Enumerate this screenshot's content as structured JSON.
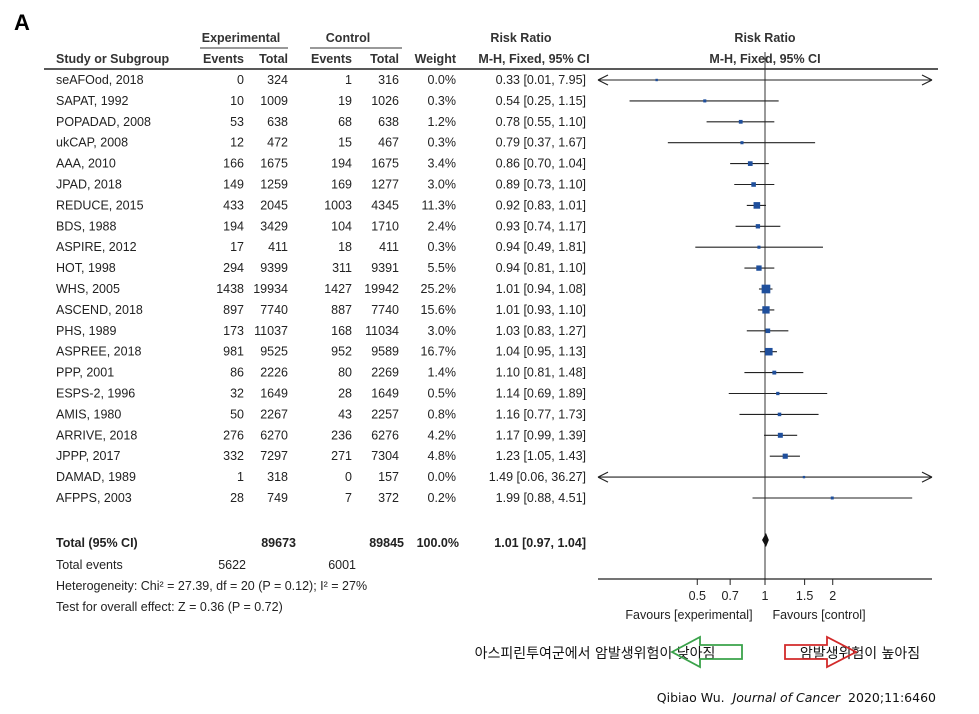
{
  "panel_label": "A",
  "headers": {
    "group_experimental": "Experimental",
    "group_control": "Control",
    "group_risk_ratio_left": "Risk Ratio",
    "method_left": "M-H, Fixed, 95% CI",
    "group_risk_ratio_right": "Risk Ratio",
    "method_right": "M-H, Fixed, 95% CI",
    "study": "Study or Subgroup",
    "events": "Events",
    "total": "Total",
    "events2": "Events",
    "total2": "Total",
    "weight": "Weight"
  },
  "chart_data": {
    "type": "forest",
    "xscale": "log",
    "xlim": [
      0.25,
      4.0
    ],
    "xticks": [
      "0.5",
      "0.7",
      "1",
      "1.5",
      "2"
    ],
    "x_left_label": "Favours [experimental]",
    "x_right_label": "Favours [control]",
    "studies": [
      {
        "name": "seAFOod, 2018",
        "exp_events": "0",
        "exp_total": "324",
        "ctl_events": "1",
        "ctl_total": "316",
        "weight": "0.0%",
        "ci_text": "0.33 [0.01, 7.95]",
        "rr": 0.33,
        "lo": 0.01,
        "hi": 7.95
      },
      {
        "name": "SAPAT, 1992",
        "exp_events": "10",
        "exp_total": "1009",
        "ctl_events": "19",
        "ctl_total": "1026",
        "weight": "0.3%",
        "ci_text": "0.54 [0.25, 1.15]",
        "rr": 0.54,
        "lo": 0.25,
        "hi": 1.15
      },
      {
        "name": "POPADAD, 2008",
        "exp_events": "53",
        "exp_total": "638",
        "ctl_events": "68",
        "ctl_total": "638",
        "weight": "1.2%",
        "ci_text": "0.78 [0.55, 1.10]",
        "rr": 0.78,
        "lo": 0.55,
        "hi": 1.1
      },
      {
        "name": "ukCAP, 2008",
        "exp_events": "12",
        "exp_total": "472",
        "ctl_events": "15",
        "ctl_total": "467",
        "weight": "0.3%",
        "ci_text": "0.79 [0.37, 1.67]",
        "rr": 0.79,
        "lo": 0.37,
        "hi": 1.67
      },
      {
        "name": "AAA, 2010",
        "exp_events": "166",
        "exp_total": "1675",
        "ctl_events": "194",
        "ctl_total": "1675",
        "weight": "3.4%",
        "ci_text": "0.86 [0.70, 1.04]",
        "rr": 0.86,
        "lo": 0.7,
        "hi": 1.04
      },
      {
        "name": "JPAD, 2018",
        "exp_events": "149",
        "exp_total": "1259",
        "ctl_events": "169",
        "ctl_total": "1277",
        "weight": "3.0%",
        "ci_text": "0.89 [0.73, 1.10]",
        "rr": 0.89,
        "lo": 0.73,
        "hi": 1.1
      },
      {
        "name": "REDUCE, 2015",
        "exp_events": "433",
        "exp_total": "2045",
        "ctl_events": "1003",
        "ctl_total": "4345",
        "weight": "11.3%",
        "ci_text": "0.92 [0.83, 1.01]",
        "rr": 0.92,
        "lo": 0.83,
        "hi": 1.01
      },
      {
        "name": "BDS, 1988",
        "exp_events": "194",
        "exp_total": "3429",
        "ctl_events": "104",
        "ctl_total": "1710",
        "weight": "2.4%",
        "ci_text": "0.93 [0.74, 1.17]",
        "rr": 0.93,
        "lo": 0.74,
        "hi": 1.17
      },
      {
        "name": "ASPIRE, 2012",
        "exp_events": "17",
        "exp_total": "411",
        "ctl_events": "18",
        "ctl_total": "411",
        "weight": "0.3%",
        "ci_text": "0.94 [0.49, 1.81]",
        "rr": 0.94,
        "lo": 0.49,
        "hi": 1.81
      },
      {
        "name": "HOT, 1998",
        "exp_events": "294",
        "exp_total": "9399",
        "ctl_events": "311",
        "ctl_total": "9391",
        "weight": "5.5%",
        "ci_text": "0.94 [0.81, 1.10]",
        "rr": 0.94,
        "lo": 0.81,
        "hi": 1.1
      },
      {
        "name": "WHS, 2005",
        "exp_events": "1438",
        "exp_total": "19934",
        "ctl_events": "1427",
        "ctl_total": "19942",
        "weight": "25.2%",
        "ci_text": "1.01 [0.94, 1.08]",
        "rr": 1.01,
        "lo": 0.94,
        "hi": 1.08
      },
      {
        "name": "ASCEND, 2018",
        "exp_events": "897",
        "exp_total": "7740",
        "ctl_events": "887",
        "ctl_total": "7740",
        "weight": "15.6%",
        "ci_text": "1.01 [0.93, 1.10]",
        "rr": 1.01,
        "lo": 0.93,
        "hi": 1.1
      },
      {
        "name": "PHS, 1989",
        "exp_events": "173",
        "exp_total": "11037",
        "ctl_events": "168",
        "ctl_total": "11034",
        "weight": "3.0%",
        "ci_text": "1.03 [0.83, 1.27]",
        "rr": 1.03,
        "lo": 0.83,
        "hi": 1.27
      },
      {
        "name": "ASPREE, 2018",
        "exp_events": "981",
        "exp_total": "9525",
        "ctl_events": "952",
        "ctl_total": "9589",
        "weight": "16.7%",
        "ci_text": "1.04 [0.95, 1.13]",
        "rr": 1.04,
        "lo": 0.95,
        "hi": 1.13
      },
      {
        "name": "PPP, 2001",
        "exp_events": "86",
        "exp_total": "2226",
        "ctl_events": "80",
        "ctl_total": "2269",
        "weight": "1.4%",
        "ci_text": "1.10 [0.81, 1.48]",
        "rr": 1.1,
        "lo": 0.81,
        "hi": 1.48
      },
      {
        "name": "ESPS-2, 1996",
        "exp_events": "32",
        "exp_total": "1649",
        "ctl_events": "28",
        "ctl_total": "1649",
        "weight": "0.5%",
        "ci_text": "1.14 [0.69, 1.89]",
        "rr": 1.14,
        "lo": 0.69,
        "hi": 1.89
      },
      {
        "name": "AMIS, 1980",
        "exp_events": "50",
        "exp_total": "2267",
        "ctl_events": "43",
        "ctl_total": "2257",
        "weight": "0.8%",
        "ci_text": "1.16 [0.77, 1.73]",
        "rr": 1.16,
        "lo": 0.77,
        "hi": 1.73
      },
      {
        "name": "ARRIVE, 2018",
        "exp_events": "276",
        "exp_total": "6270",
        "ctl_events": "236",
        "ctl_total": "6276",
        "weight": "4.2%",
        "ci_text": "1.17 [0.99, 1.39]",
        "rr": 1.17,
        "lo": 0.99,
        "hi": 1.39
      },
      {
        "name": "JPPP, 2017",
        "exp_events": "332",
        "exp_total": "7297",
        "ctl_events": "271",
        "ctl_total": "7304",
        "weight": "4.8%",
        "ci_text": "1.23 [1.05, 1.43]",
        "rr": 1.23,
        "lo": 1.05,
        "hi": 1.43
      },
      {
        "name": "DAMAD, 1989",
        "exp_events": "1",
        "exp_total": "318",
        "ctl_events": "0",
        "ctl_total": "157",
        "weight": "0.0%",
        "ci_text": "1.49 [0.06, 36.27]",
        "rr": 1.49,
        "lo": 0.06,
        "hi": 36.27
      },
      {
        "name": "AFPPS, 2003",
        "exp_events": "28",
        "exp_total": "749",
        "ctl_events": "7",
        "ctl_total": "372",
        "weight": "0.2%",
        "ci_text": "1.99 [0.88, 4.51]",
        "rr": 1.99,
        "lo": 0.88,
        "hi": 4.51
      }
    ],
    "total": {
      "name": "Total (95% CI)",
      "exp_total": "89673",
      "ctl_total": "89845",
      "weight": "100.0%",
      "ci_text": "1.01 [0.97, 1.04]",
      "rr": 1.01,
      "lo": 0.97,
      "hi": 1.04
    },
    "total_events": {
      "label": "Total events",
      "exp": "5622",
      "ctl": "6001"
    },
    "heterogeneity": "Heterogeneity: Chi² = 27.39, df = 20 (P = 0.12); I² = 27%",
    "overall_effect": "Test for overall effect: Z = 0.36 (P = 0.72)"
  },
  "annotations": {
    "lower_risk_text": "아스피린투여군에서 암발생위험이 낮아짐",
    "higher_risk_text": "암발생위험이 높아짐",
    "green_arrow_color": "#3aa24a",
    "red_arrow_color": "#d22a2a"
  },
  "citation": {
    "author": "Qibiao Wu.",
    "journal": "Journal of Cancer",
    "ref": "2020;11:6460"
  },
  "colors": {
    "marker": "#1f4f9c",
    "line": "#222222"
  }
}
